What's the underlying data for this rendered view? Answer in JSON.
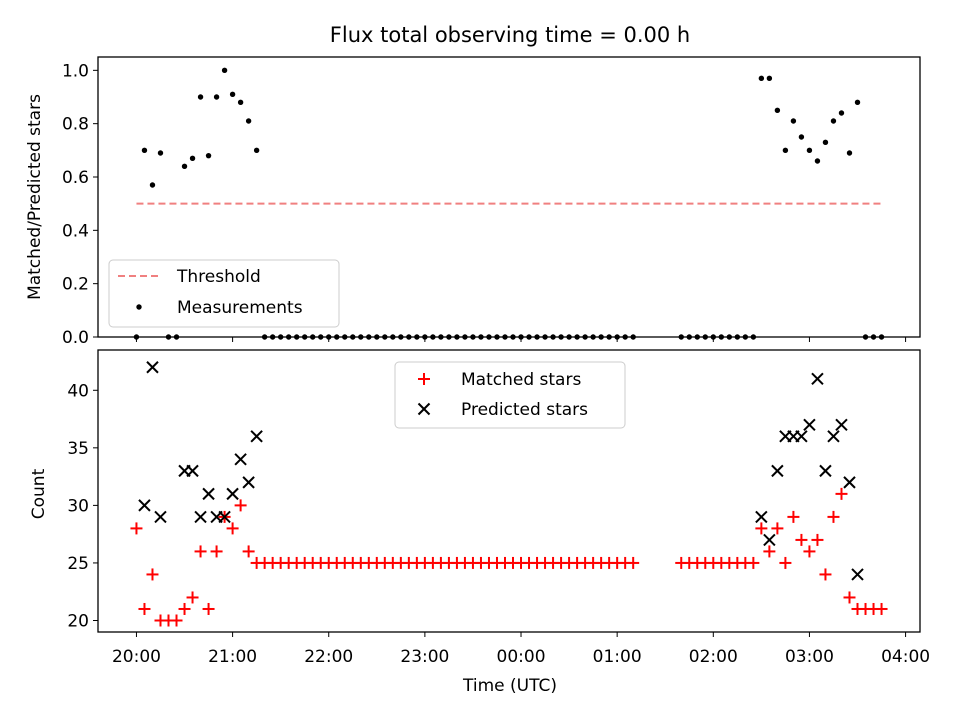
{
  "chart_data": [
    {
      "type": "scatter",
      "title": "Flux total observing time = 0.00 h",
      "xlabel": "",
      "ylabel": "Matched/Predicted stars",
      "xlim_hours": [
        19.6,
        28.15
      ],
      "ylim": [
        0,
        1.05
      ],
      "yticks": [
        0.0,
        0.2,
        0.4,
        0.6,
        0.8,
        1.0
      ],
      "ytick_labels": [
        "0.0",
        "0.2",
        "0.4",
        "0.6",
        "0.8",
        "1.0"
      ],
      "grid": false,
      "legend_position": "lower-left",
      "threshold": {
        "name": "Threshold",
        "color": "#f08080",
        "x_range": [
          "20:00",
          "03:45"
        ],
        "y": 0.5
      },
      "series": [
        {
          "name": "Measurements",
          "color": "#000000",
          "x": [
            "20:00",
            "20:05",
            "20:10",
            "20:15",
            "20:20",
            "20:25",
            "20:30",
            "20:35",
            "20:40",
            "20:45",
            "20:50",
            "20:55",
            "21:00",
            "21:05",
            "21:10",
            "21:15",
            "21:20",
            "21:25",
            "21:30",
            "21:35",
            "21:40",
            "21:45",
            "21:50",
            "21:55",
            "22:00",
            "22:05",
            "22:10",
            "22:15",
            "22:20",
            "22:25",
            "22:30",
            "22:35",
            "22:40",
            "22:45",
            "22:50",
            "22:55",
            "23:00",
            "23:05",
            "23:10",
            "23:15",
            "23:20",
            "23:25",
            "23:30",
            "23:35",
            "23:40",
            "23:45",
            "23:50",
            "23:55",
            "00:00",
            "00:05",
            "00:10",
            "00:15",
            "00:20",
            "00:25",
            "00:30",
            "00:35",
            "00:40",
            "00:45",
            "00:50",
            "00:55",
            "01:00",
            "01:05",
            "01:10",
            "01:40",
            "01:45",
            "01:50",
            "01:55",
            "02:00",
            "02:05",
            "02:10",
            "02:15",
            "02:20",
            "02:25",
            "02:30",
            "02:35",
            "02:40",
            "02:45",
            "02:50",
            "02:55",
            "03:00",
            "03:05",
            "03:10",
            "03:15",
            "03:20",
            "03:25",
            "03:30",
            "03:35",
            "03:40",
            "03:45"
          ],
          "y": [
            0.0,
            0.7,
            0.57,
            0.69,
            0.0,
            0.0,
            0.64,
            0.67,
            0.9,
            0.68,
            0.9,
            1.0,
            0.91,
            0.88,
            0.81,
            0.7,
            0.0,
            0.0,
            0.0,
            0.0,
            0.0,
            0.0,
            0.0,
            0.0,
            0.0,
            0.0,
            0.0,
            0.0,
            0.0,
            0.0,
            0.0,
            0.0,
            0.0,
            0.0,
            0.0,
            0.0,
            0.0,
            0.0,
            0.0,
            0.0,
            0.0,
            0.0,
            0.0,
            0.0,
            0.0,
            0.0,
            0.0,
            0.0,
            0.0,
            0.0,
            0.0,
            0.0,
            0.0,
            0.0,
            0.0,
            0.0,
            0.0,
            0.0,
            0.0,
            0.0,
            0.0,
            0.0,
            0.0,
            0.0,
            0.0,
            0.0,
            0.0,
            0.0,
            0.0,
            0.0,
            0.0,
            0.0,
            0.0,
            0.97,
            0.97,
            0.85,
            0.7,
            0.81,
            0.75,
            0.7,
            0.66,
            0.73,
            0.81,
            0.84,
            0.69,
            0.88,
            0.0,
            0.0,
            0.0
          ]
        }
      ]
    },
    {
      "type": "scatter",
      "title": "",
      "xlabel": "Time (UTC)",
      "ylabel": "Count",
      "xlim_hours": [
        19.6,
        28.15
      ],
      "ylim": [
        19,
        43.5
      ],
      "yticks": [
        20,
        25,
        30,
        35,
        40
      ],
      "ytick_labels": [
        "20",
        "25",
        "30",
        "35",
        "40"
      ],
      "xticks_hours": [
        20,
        21,
        22,
        23,
        24,
        25,
        26,
        27,
        28
      ],
      "xtick_labels": [
        "20:00",
        "21:00",
        "22:00",
        "23:00",
        "00:00",
        "01:00",
        "02:00",
        "03:00",
        "04:00"
      ],
      "grid": false,
      "legend_position": "upper-center",
      "series": [
        {
          "name": "Matched stars",
          "color": "#ff0000",
          "marker": "plus",
          "x": [
            "20:00",
            "20:05",
            "20:10",
            "20:15",
            "20:20",
            "20:25",
            "20:30",
            "20:35",
            "20:40",
            "20:45",
            "20:50",
            "20:55",
            "21:00",
            "21:05",
            "21:10",
            "21:15",
            "21:20",
            "21:25",
            "21:30",
            "21:35",
            "21:40",
            "21:45",
            "21:50",
            "21:55",
            "22:00",
            "22:05",
            "22:10",
            "22:15",
            "22:20",
            "22:25",
            "22:30",
            "22:35",
            "22:40",
            "22:45",
            "22:50",
            "22:55",
            "23:00",
            "23:05",
            "23:10",
            "23:15",
            "23:20",
            "23:25",
            "23:30",
            "23:35",
            "23:40",
            "23:45",
            "23:50",
            "23:55",
            "00:00",
            "00:05",
            "00:10",
            "00:15",
            "00:20",
            "00:25",
            "00:30",
            "00:35",
            "00:40",
            "00:45",
            "00:50",
            "00:55",
            "01:00",
            "01:05",
            "01:10",
            "01:40",
            "01:45",
            "01:50",
            "01:55",
            "02:00",
            "02:05",
            "02:10",
            "02:15",
            "02:20",
            "02:25",
            "02:30",
            "02:35",
            "02:40",
            "02:45",
            "02:50",
            "02:55",
            "03:00",
            "03:05",
            "03:10",
            "03:15",
            "03:20",
            "03:25",
            "03:30",
            "03:35",
            "03:40",
            "03:45"
          ],
          "y": [
            28,
            21,
            24,
            20,
            20,
            20,
            21,
            22,
            26,
            21,
            26,
            29,
            28,
            30,
            26,
            25,
            25,
            25,
            25,
            25,
            25,
            25,
            25,
            25,
            25,
            25,
            25,
            25,
            25,
            25,
            25,
            25,
            25,
            25,
            25,
            25,
            25,
            25,
            25,
            25,
            25,
            25,
            25,
            25,
            25,
            25,
            25,
            25,
            25,
            25,
            25,
            25,
            25,
            25,
            25,
            25,
            25,
            25,
            25,
            25,
            25,
            25,
            25,
            25,
            25,
            25,
            25,
            25,
            25,
            25,
            25,
            25,
            25,
            28,
            26,
            28,
            25,
            29,
            27,
            26,
            27,
            24,
            29,
            31,
            22,
            21,
            21,
            21,
            21
          ]
        },
        {
          "name": "Predicted stars",
          "color": "#000000",
          "marker": "x",
          "x": [
            "20:05",
            "20:10",
            "20:15",
            "20:30",
            "20:35",
            "20:40",
            "20:45",
            "20:50",
            "20:55",
            "21:00",
            "21:05",
            "21:10",
            "21:15",
            "02:30",
            "02:35",
            "02:40",
            "02:45",
            "02:50",
            "02:55",
            "03:00",
            "03:05",
            "03:10",
            "03:15",
            "03:20",
            "03:25",
            "03:30"
          ],
          "y": [
            30,
            42,
            29,
            33,
            33,
            29,
            31,
            29,
            29,
            31,
            34,
            32,
            36,
            29,
            27,
            33,
            36,
            36,
            36,
            37,
            41,
            33,
            36,
            37,
            32,
            24
          ]
        }
      ]
    }
  ]
}
